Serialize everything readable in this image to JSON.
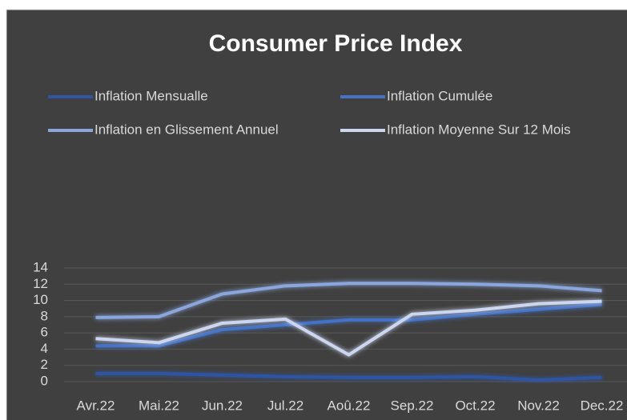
{
  "chart_data": {
    "type": "line",
    "title": "Consumer Price Index",
    "categories": [
      "Avr.22",
      "Mai.22",
      "Jun.22",
      "Jul.22",
      "Aoû.22",
      "Sep.22",
      "Oct.22",
      "Nov.22",
      "Dec.22"
    ],
    "series": [
      {
        "name": "Inflation Mensualle",
        "color": "#2f55a4",
        "values": [
          1.0,
          1.0,
          0.8,
          0.6,
          0.5,
          0.5,
          0.6,
          0.2,
          0.5
        ]
      },
      {
        "name": "Inflation Cumulée",
        "color": "#4472c4",
        "values": [
          4.4,
          4.4,
          6.4,
          7.0,
          7.6,
          7.6,
          8.3,
          8.9,
          9.5
        ]
      },
      {
        "name": "Inflation en Glissement Annuel",
        "color": "#8aa6dc",
        "values": [
          7.9,
          8.0,
          10.8,
          11.8,
          12.1,
          12.1,
          12.0,
          11.8,
          11.2
        ]
      },
      {
        "name": "Inflation Moyenne Sur 12 Mois",
        "color": "#ccd6ef",
        "values": [
          5.3,
          4.8,
          7.2,
          7.7,
          3.3,
          8.3,
          8.8,
          9.6,
          9.9
        ]
      }
    ],
    "ylim": [
      0,
      14
    ],
    "yticks": [
      0,
      2,
      4,
      6,
      8,
      10,
      12,
      14
    ],
    "grid": true
  }
}
